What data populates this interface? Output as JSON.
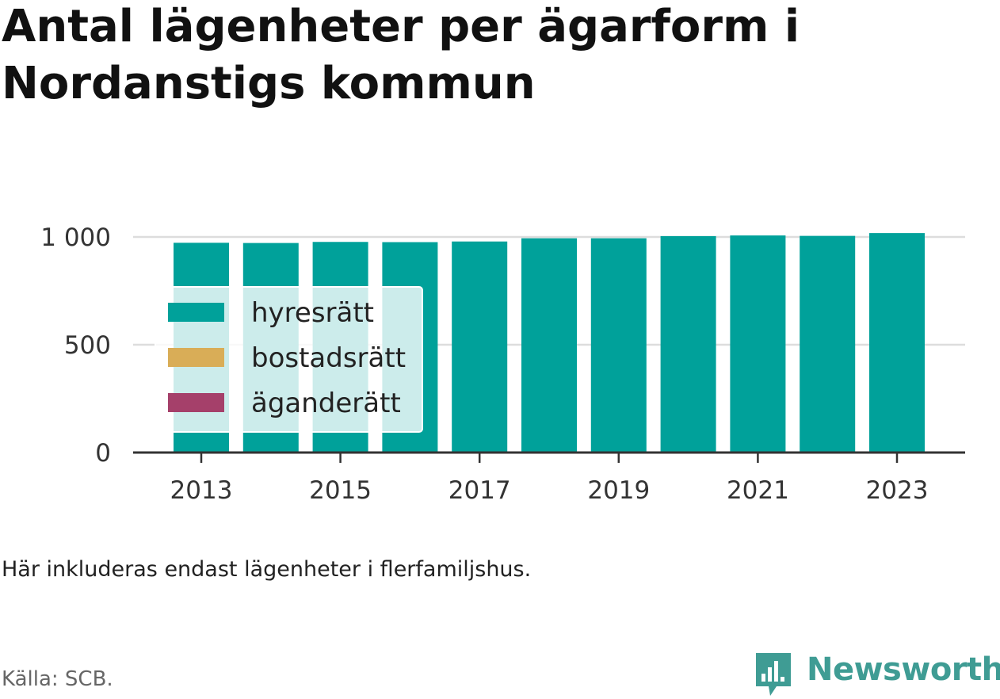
{
  "title": "Antal lägenheter per ägarform i Nordanstigs kommun",
  "note": "Här inkluderas endast lägenheter i flerfamiljshus.",
  "source": "Källa: SCB.",
  "brand": {
    "name": "Newsworthy",
    "icon": "newsworthy-logo-icon",
    "color": "#3f9c94"
  },
  "chart_data": {
    "type": "bar",
    "stacked": true,
    "categories": [
      "2013",
      "2014",
      "2015",
      "2016",
      "2017",
      "2018",
      "2019",
      "2020",
      "2021",
      "2022",
      "2023"
    ],
    "series": [
      {
        "name": "hyresrätt",
        "color": "#00a19a",
        "values": [
          973,
          972,
          977,
          976,
          979,
          994,
          994,
          1004,
          1007,
          1005,
          1018
        ]
      },
      {
        "name": "bostadsrätt",
        "color": "#d9ad57",
        "values": [
          0,
          0,
          0,
          0,
          0,
          0,
          0,
          0,
          0,
          0,
          0
        ]
      },
      {
        "name": "äganderätt",
        "color": "#a5406a",
        "values": [
          0,
          0,
          0,
          0,
          0,
          0,
          0,
          0,
          0,
          0,
          0
        ]
      }
    ],
    "ylim": [
      0,
      1000
    ],
    "yticks": [
      {
        "value": 0,
        "label": "0"
      },
      {
        "value": 500,
        "label": "500"
      },
      {
        "value": 1000,
        "label": "1 000"
      }
    ],
    "xtick_labels": [
      "2013",
      "2015",
      "2017",
      "2019",
      "2021",
      "2023"
    ],
    "xlabel": "",
    "ylabel": "",
    "grid": true,
    "legend_position": "upper-left"
  }
}
